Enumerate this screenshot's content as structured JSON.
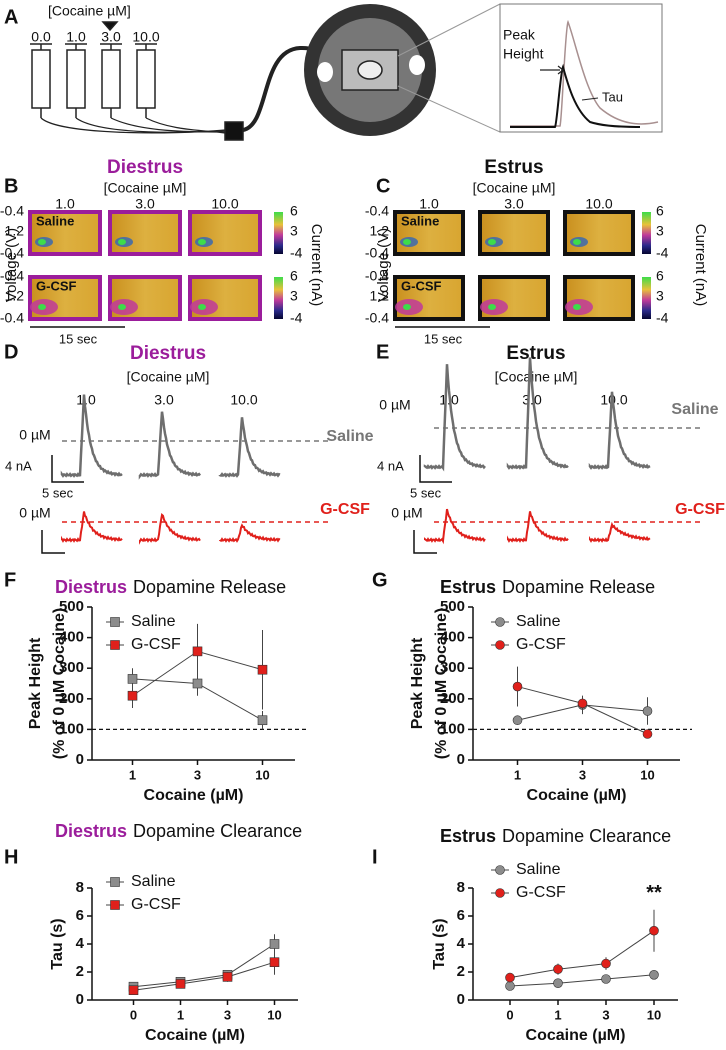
{
  "panel_a": {
    "label": "A",
    "cocaine_label": "[Cocaine µM]",
    "syringes": [
      "0.0",
      "1.0",
      "3.0",
      "10.0"
    ],
    "peak_label": [
      "Peak",
      "Height"
    ],
    "tau_label": "Tau"
  },
  "heatmaps": [
    {
      "label": "B",
      "group": "Diestrus",
      "group_color": "#9b1d9b",
      "cocaine_label": "[Cocaine µM]",
      "concentrations": [
        "1.0",
        "3.0",
        "10.0"
      ],
      "voltage_ticks": [
        "-0.4",
        "1.2",
        "-0.4"
      ],
      "ylabel": "Voltage (V)",
      "rows": [
        "Saline",
        "G-CSF"
      ],
      "colorbar_ticks": [
        "6",
        "3",
        "-4"
      ],
      "colorbar_label": "Current (nA)",
      "scale": "15 sec"
    },
    {
      "label": "C",
      "group": "Estrus",
      "group_color": "#111111",
      "cocaine_label": "[Cocaine µM]",
      "concentrations": [
        "1.0",
        "3.0",
        "10.0"
      ],
      "voltage_ticks": [
        "-0.4",
        "1.2",
        "-0.4"
      ],
      "ylabel": "Voltage (V)",
      "rows": [
        "Saline",
        "G-CSF"
      ],
      "colorbar_ticks": [
        "6",
        "3",
        "-4"
      ],
      "colorbar_label": "Current (nA)",
      "scale": "15 sec"
    }
  ],
  "traces": [
    {
      "label": "D",
      "group": "Diestrus",
      "group_color": "#9b1d9b",
      "cocaine_label": "[Cocaine µM]",
      "concentrations": [
        "1.0",
        "3.0",
        "10.0"
      ],
      "zero_label": "0 µM",
      "rows": [
        "Saline",
        "G-CSF"
      ],
      "scale_y": "4 nA",
      "scale_x": "5 sec"
    },
    {
      "label": "E",
      "group": "Estrus",
      "group_color": "#111111",
      "cocaine_label": "[Cocaine µM]",
      "concentrations": [
        "1.0",
        "3.0",
        "10.0"
      ],
      "zero_label": "0 µM",
      "rows": [
        "Saline",
        "G-CSF"
      ],
      "scale_y": "4 nA",
      "scale_x": "5 sec"
    }
  ],
  "chart_data": [
    {
      "type": "line",
      "label": "F",
      "title_prefix": "Diestrus",
      "title_prefix_color": "#9b1d9b",
      "title": "Dopamine Release",
      "ylabel": [
        "Peak Height",
        "(% of 0 µM Cocaine)"
      ],
      "xlabel": "Cocaine (µM)",
      "categories": [
        "1",
        "3",
        "10"
      ],
      "ylim": [
        0,
        500
      ],
      "yticks": [
        0,
        100,
        200,
        300,
        400,
        500
      ],
      "reference_line": 100,
      "legend": "upper left",
      "series": [
        {
          "name": "Saline",
          "color": "#8c8c8c",
          "marker": "square",
          "values": [
            265,
            250,
            130
          ],
          "errors": [
            35,
            40,
            30
          ]
        },
        {
          "name": "G-CSF",
          "color": "#e0201b",
          "marker": "square",
          "values": [
            210,
            355,
            295
          ],
          "errors": [
            40,
            90,
            130
          ]
        }
      ]
    },
    {
      "type": "line",
      "label": "G",
      "title_prefix": "Estrus",
      "title_prefix_color": "#111111",
      "title": "Dopamine Release",
      "ylabel": [
        "Peak Height",
        "(% of 0 µM Cocaine)"
      ],
      "xlabel": "Cocaine (µM)",
      "categories": [
        "1",
        "3",
        "10"
      ],
      "ylim": [
        0,
        500
      ],
      "yticks": [
        0,
        100,
        200,
        300,
        400,
        500
      ],
      "reference_line": 100,
      "legend": "upper left",
      "series": [
        {
          "name": "Saline",
          "color": "#8c8c8c",
          "marker": "circle",
          "values": [
            130,
            180,
            160
          ],
          "errors": [
            15,
            30,
            45
          ]
        },
        {
          "name": "G-CSF",
          "color": "#e0201b",
          "marker": "circle",
          "values": [
            240,
            185,
            85
          ],
          "errors": [
            65,
            25,
            10
          ]
        }
      ]
    },
    {
      "type": "line",
      "label": "H",
      "title_prefix": "Diestrus",
      "title_prefix_color": "#9b1d9b",
      "title": "Dopamine Clearance",
      "ylabel": [
        "Tau (s)"
      ],
      "xlabel": "Cocaine (µM)",
      "categories": [
        "0",
        "1",
        "3",
        "10"
      ],
      "ylim": [
        0,
        8
      ],
      "yticks": [
        0,
        2,
        4,
        6,
        8
      ],
      "legend": "upper left",
      "series": [
        {
          "name": "Saline",
          "color": "#8c8c8c",
          "marker": "square",
          "values": [
            0.95,
            1.3,
            1.8,
            4.0
          ],
          "errors": [
            0.1,
            0.1,
            0.2,
            0.7
          ]
        },
        {
          "name": "G-CSF",
          "color": "#e0201b",
          "marker": "square",
          "values": [
            0.7,
            1.15,
            1.65,
            2.7
          ],
          "errors": [
            0.1,
            0.15,
            0.35,
            0.9
          ]
        }
      ]
    },
    {
      "type": "line",
      "label": "I",
      "title_prefix": "Estrus",
      "title_prefix_color": "#111111",
      "title": "Dopamine Clearance",
      "ylabel": [
        "Tau (s)"
      ],
      "xlabel": "Cocaine (µM)",
      "categories": [
        "0",
        "1",
        "3",
        "10"
      ],
      "ylim": [
        0,
        8
      ],
      "yticks": [
        0,
        2,
        4,
        6,
        8
      ],
      "legend": "upper left",
      "annotation": "**",
      "series": [
        {
          "name": "Saline",
          "color": "#8c8c8c",
          "marker": "circle",
          "values": [
            1.0,
            1.2,
            1.5,
            1.8
          ],
          "errors": [
            0.1,
            0.1,
            0.1,
            0.15
          ]
        },
        {
          "name": "G-CSF",
          "color": "#e0201b",
          "marker": "circle",
          "values": [
            1.6,
            2.2,
            2.6,
            4.95
          ],
          "errors": [
            0.15,
            0.4,
            0.45,
            1.5
          ]
        }
      ]
    }
  ]
}
